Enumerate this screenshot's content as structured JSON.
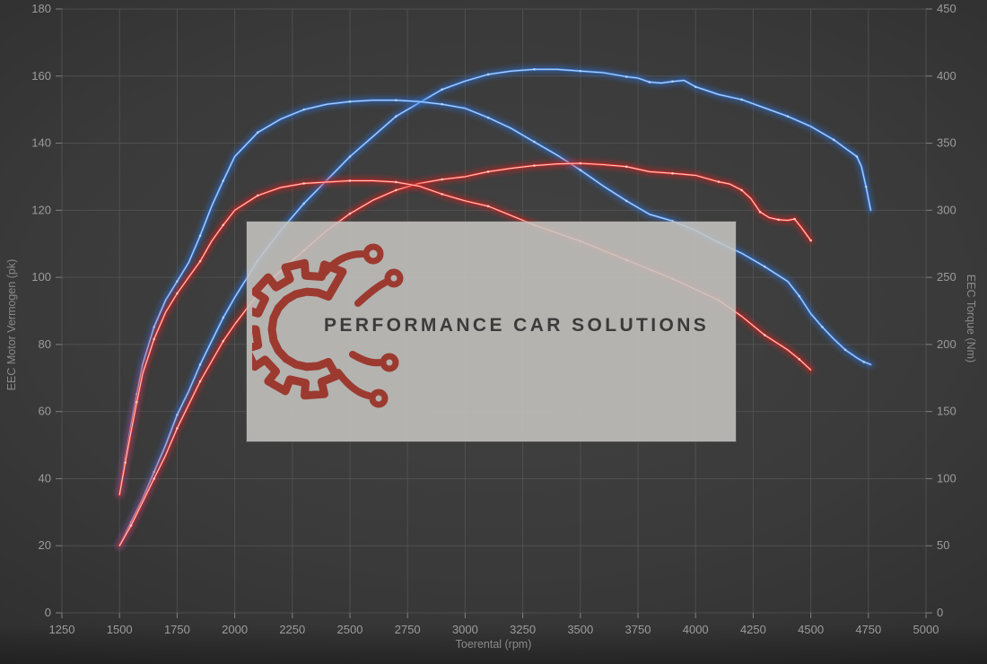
{
  "watermark": {
    "text": "PERFORMANCE CAR SOLUTIONS"
  },
  "chart_data": {
    "type": "line",
    "title": "",
    "xlabel": "Toerental (rpm)",
    "ylabel_left": "EEC Motor Vermogen (pk)",
    "ylabel_right": "EEC Torque (Nm)",
    "x_range": [
      1250,
      5000
    ],
    "x_ticks": [
      1250,
      1500,
      1750,
      2000,
      2250,
      2500,
      2750,
      3000,
      3250,
      3500,
      3750,
      4000,
      4250,
      4500,
      4750,
      5000
    ],
    "left_range": [
      0,
      180
    ],
    "left_ticks": [
      0,
      20,
      40,
      60,
      80,
      100,
      120,
      140,
      160,
      180
    ],
    "right_range": [
      0,
      450
    ],
    "right_ticks": [
      0,
      50,
      100,
      150,
      200,
      250,
      300,
      350,
      400,
      450
    ],
    "grid": true,
    "legend": "none",
    "colors": {
      "blue_glow": "#2e6fd2",
      "blue_main": "#3f80dd",
      "blue_core": "#b9d7fa",
      "red_glow": "#d42020",
      "red_main": "#e23128",
      "red_core": "#ffd0ca",
      "grid_line": "#565656",
      "tick_text": "#9c9c9c",
      "axis_title": "#8a8a8a",
      "watermark_bg": "#c6c4c1",
      "logo_red": "#9c3a30",
      "watermark_text": "#3b3b3b"
    },
    "series": [
      {
        "name": "power-blue",
        "color": "blue",
        "axis": "left",
        "points": [
          [
            1500,
            20
          ],
          [
            1550,
            27
          ],
          [
            1600,
            34
          ],
          [
            1650,
            42
          ],
          [
            1700,
            50
          ],
          [
            1750,
            59
          ],
          [
            1800,
            66
          ],
          [
            1850,
            74
          ],
          [
            1900,
            81
          ],
          [
            1950,
            88
          ],
          [
            2000,
            94
          ],
          [
            2100,
            105
          ],
          [
            2200,
            114
          ],
          [
            2300,
            122
          ],
          [
            2400,
            129
          ],
          [
            2500,
            136
          ],
          [
            2600,
            142
          ],
          [
            2700,
            148
          ],
          [
            2800,
            152
          ],
          [
            2900,
            156
          ],
          [
            3000,
            158.5
          ],
          [
            3100,
            160.5
          ],
          [
            3200,
            161.5
          ],
          [
            3300,
            162
          ],
          [
            3400,
            162
          ],
          [
            3500,
            161.5
          ],
          [
            3600,
            161
          ],
          [
            3700,
            159.8
          ],
          [
            3750,
            159.4
          ],
          [
            3800,
            158.2
          ],
          [
            3850,
            157.9
          ],
          [
            3900,
            158.4
          ],
          [
            3950,
            158.7
          ],
          [
            4000,
            156.8
          ],
          [
            4100,
            154.5
          ],
          [
            4200,
            153
          ],
          [
            4300,
            150.5
          ],
          [
            4400,
            148
          ],
          [
            4500,
            145
          ],
          [
            4600,
            141
          ],
          [
            4650,
            138.5
          ],
          [
            4700,
            136
          ],
          [
            4720,
            133
          ],
          [
            4740,
            127
          ],
          [
            4760,
            120
          ]
        ]
      },
      {
        "name": "torque-blue",
        "color": "blue",
        "axis": "right",
        "points": [
          [
            1500,
            89
          ],
          [
            1525,
            115
          ],
          [
            1550,
            140
          ],
          [
            1575,
            163
          ],
          [
            1600,
            185
          ],
          [
            1650,
            213
          ],
          [
            1700,
            233
          ],
          [
            1750,
            247
          ],
          [
            1800,
            261
          ],
          [
            1850,
            281
          ],
          [
            1900,
            303
          ],
          [
            1950,
            322
          ],
          [
            2000,
            340
          ],
          [
            2100,
            358
          ],
          [
            2200,
            368
          ],
          [
            2300,
            375
          ],
          [
            2400,
            379
          ],
          [
            2500,
            381
          ],
          [
            2600,
            382
          ],
          [
            2700,
            382
          ],
          [
            2800,
            381
          ],
          [
            2900,
            379
          ],
          [
            3000,
            376
          ],
          [
            3100,
            369
          ],
          [
            3200,
            361
          ],
          [
            3300,
            351
          ],
          [
            3400,
            341
          ],
          [
            3500,
            330
          ],
          [
            3600,
            318
          ],
          [
            3700,
            307
          ],
          [
            3800,
            297
          ],
          [
            3900,
            292
          ],
          [
            4000,
            285
          ],
          [
            4100,
            276
          ],
          [
            4200,
            268
          ],
          [
            4300,
            258
          ],
          [
            4400,
            247
          ],
          [
            4450,
            236
          ],
          [
            4500,
            223
          ],
          [
            4550,
            213
          ],
          [
            4600,
            204
          ],
          [
            4650,
            196
          ],
          [
            4700,
            190
          ],
          [
            4730,
            187
          ],
          [
            4760,
            185
          ]
        ]
      },
      {
        "name": "power-red",
        "color": "red",
        "axis": "left",
        "points": [
          [
            1500,
            20
          ],
          [
            1550,
            26
          ],
          [
            1600,
            33
          ],
          [
            1650,
            40
          ],
          [
            1700,
            47
          ],
          [
            1750,
            55
          ],
          [
            1800,
            62
          ],
          [
            1850,
            69
          ],
          [
            1900,
            75
          ],
          [
            1950,
            81
          ],
          [
            2000,
            86
          ],
          [
            2100,
            95
          ],
          [
            2200,
            102
          ],
          [
            2300,
            108
          ],
          [
            2400,
            114
          ],
          [
            2500,
            119
          ],
          [
            2600,
            123
          ],
          [
            2700,
            126
          ],
          [
            2800,
            128
          ],
          [
            2900,
            129.2
          ],
          [
            3000,
            130
          ],
          [
            3100,
            131.5
          ],
          [
            3200,
            132.5
          ],
          [
            3300,
            133.3
          ],
          [
            3400,
            133.8
          ],
          [
            3500,
            134
          ],
          [
            3600,
            133.6
          ],
          [
            3700,
            133
          ],
          [
            3800,
            131.5
          ],
          [
            3900,
            131
          ],
          [
            4000,
            130.4
          ],
          [
            4100,
            128.5
          ],
          [
            4150,
            127.8
          ],
          [
            4200,
            126
          ],
          [
            4240,
            123.5
          ],
          [
            4280,
            119.5
          ],
          [
            4320,
            117.8
          ],
          [
            4360,
            117.2
          ],
          [
            4400,
            117
          ],
          [
            4430,
            117.4
          ],
          [
            4460,
            114.8
          ],
          [
            4500,
            111
          ]
        ]
      },
      {
        "name": "torque-red",
        "color": "red",
        "axis": "right",
        "points": [
          [
            1500,
            88
          ],
          [
            1525,
            112
          ],
          [
            1550,
            135
          ],
          [
            1575,
            157
          ],
          [
            1600,
            178
          ],
          [
            1650,
            204
          ],
          [
            1700,
            224
          ],
          [
            1750,
            238
          ],
          [
            1800,
            250
          ],
          [
            1850,
            262
          ],
          [
            1900,
            277
          ],
          [
            1950,
            289
          ],
          [
            2000,
            300
          ],
          [
            2100,
            311
          ],
          [
            2200,
            317
          ],
          [
            2300,
            320
          ],
          [
            2400,
            321
          ],
          [
            2500,
            322
          ],
          [
            2600,
            322
          ],
          [
            2700,
            321
          ],
          [
            2800,
            318
          ],
          [
            2900,
            312
          ],
          [
            3000,
            307
          ],
          [
            3100,
            303
          ],
          [
            3200,
            296
          ],
          [
            3300,
            289
          ],
          [
            3400,
            283
          ],
          [
            3500,
            277
          ],
          [
            3600,
            270
          ],
          [
            3700,
            263
          ],
          [
            3800,
            256
          ],
          [
            3900,
            249
          ],
          [
            4000,
            241
          ],
          [
            4100,
            233
          ],
          [
            4200,
            221
          ],
          [
            4300,
            207
          ],
          [
            4400,
            196
          ],
          [
            4450,
            189
          ],
          [
            4500,
            181
          ]
        ]
      }
    ]
  }
}
